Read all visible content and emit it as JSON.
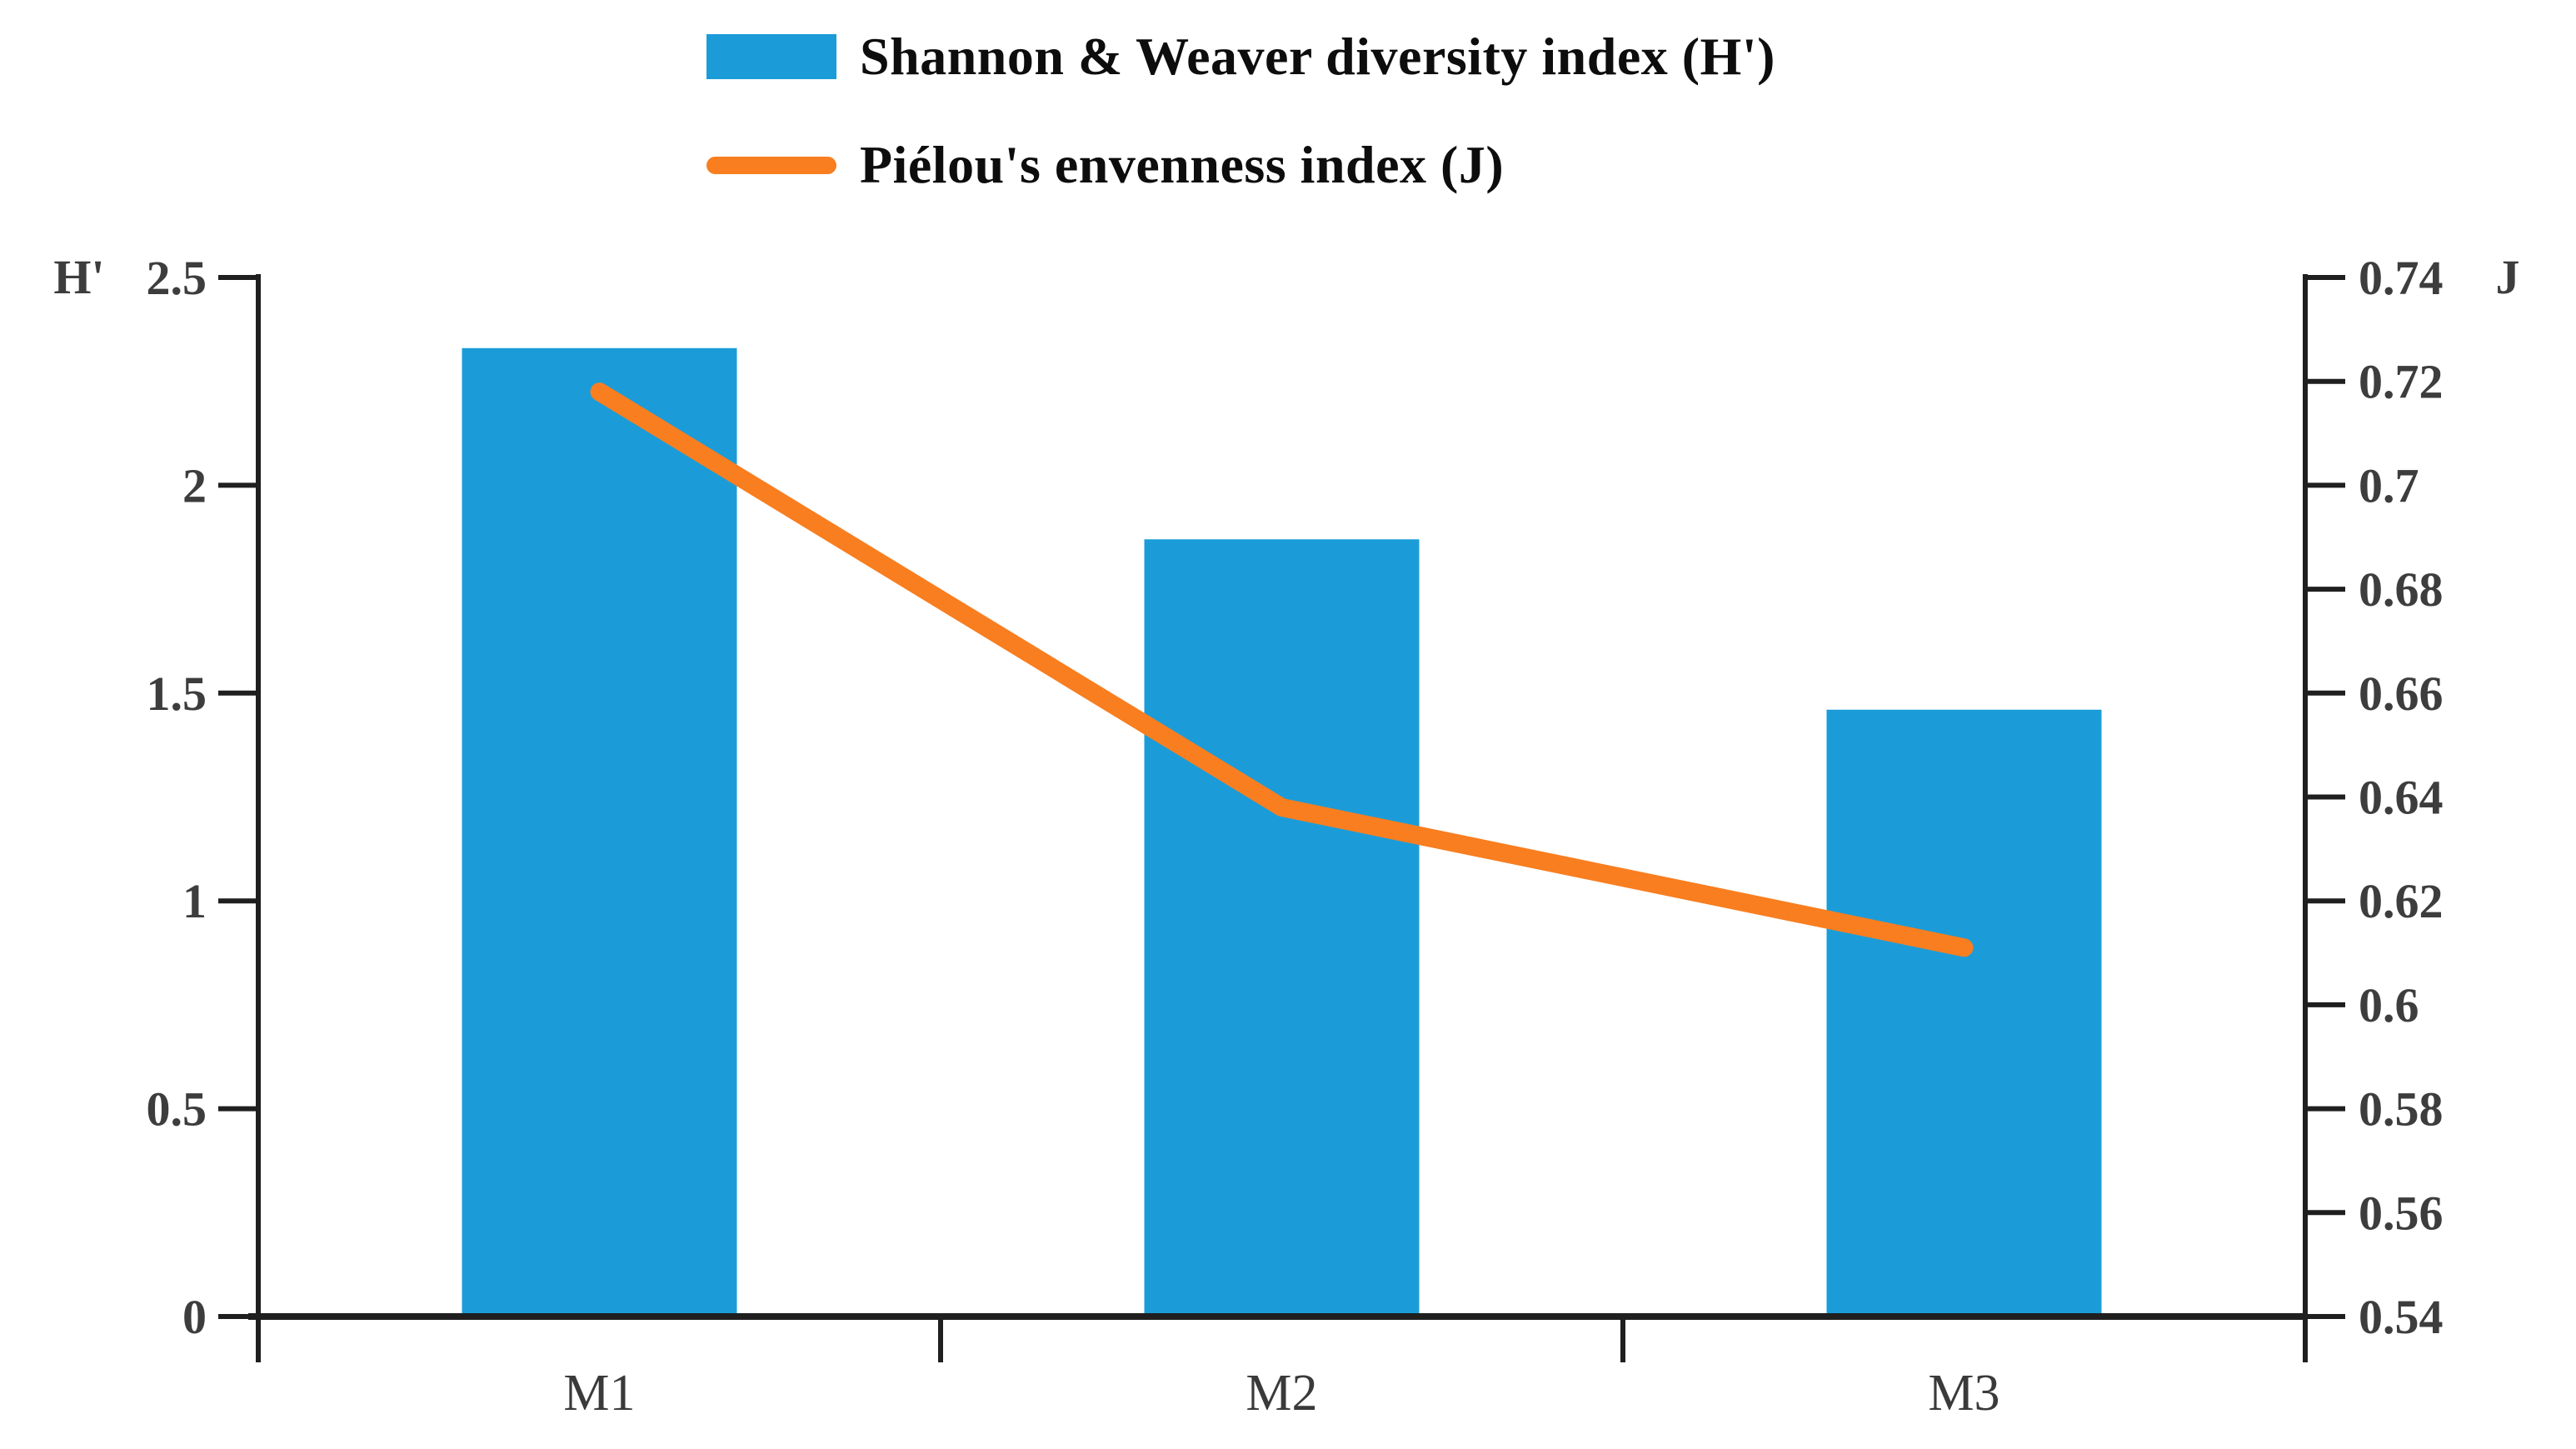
{
  "legend": {
    "items": [
      {
        "label": "Shannon & Weaver diversity index (H')",
        "swatch": "bar-swatch",
        "color": "#1b9cd8"
      },
      {
        "label": "Piélou's envenness index (J)",
        "swatch": "line-swatch",
        "color": "#f87e20"
      }
    ]
  },
  "axis_titles": {
    "left": "H'",
    "right": "J"
  },
  "colors": {
    "bar": "#1b9cd8",
    "line": "#f87e20",
    "axis": "#1f1f1f",
    "tick_label": "#3d3d3d",
    "category_label": "#3a3a3a"
  },
  "chart_data": {
    "type": "bar",
    "subtype": "combo bar+line, dual axis",
    "title": "",
    "categories": [
      "M1",
      "M2",
      "M3"
    ],
    "series": [
      {
        "name": "Shannon & Weaver diversity index (H')",
        "type": "bar",
        "axis": "left",
        "color": "#1b9cd8",
        "values": [
          2.33,
          1.87,
          1.46
        ]
      },
      {
        "name": "Piélou's envenness index (J)",
        "type": "line",
        "axis": "right",
        "color": "#f87e20",
        "values": [
          0.718,
          0.638,
          0.611
        ]
      }
    ],
    "left_axis": {
      "label": "H'",
      "range": [
        0,
        2.5
      ],
      "tick_step": 0.5,
      "tick_labels": [
        "2.5",
        "2",
        "1.5",
        "1",
        "0.5",
        "0"
      ]
    },
    "right_axis": {
      "label": "J",
      "range": [
        0.54,
        0.74
      ],
      "tick_step": 0.02,
      "tick_labels": [
        "0.74",
        "0.72",
        "0.7",
        "0.68",
        "0.66",
        "0.64",
        "0.62",
        "0.6",
        "0.58",
        "0.56",
        "0.54"
      ]
    },
    "grid": false,
    "legend_position": "top-center"
  }
}
